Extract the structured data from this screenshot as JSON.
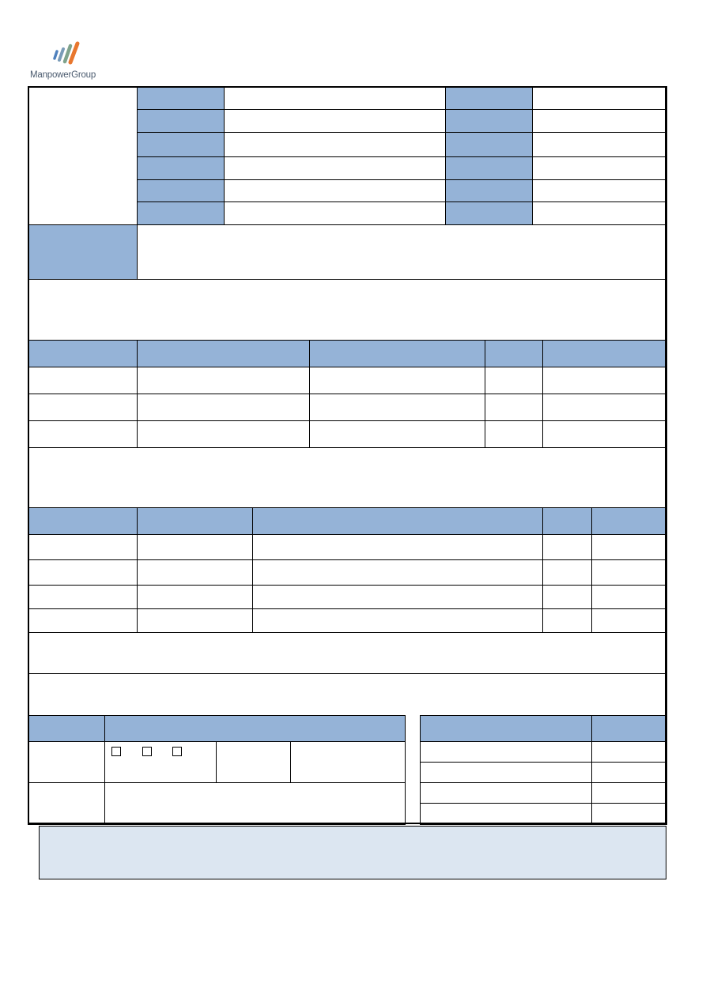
{
  "header": {
    "logo": {
      "text": "ManpowerGroup",
      "colors": [
        "#4f81bd",
        "#7a9bb8",
        "#7fa38c",
        "#e8772e"
      ]
    }
  },
  "colors": {
    "header_fill": "#95b3d7",
    "note_fill": "#dce6f1",
    "border": "#000000"
  },
  "form": {
    "checkbox_count": 3,
    "checkboxes_checked": [
      false,
      false,
      false
    ]
  }
}
